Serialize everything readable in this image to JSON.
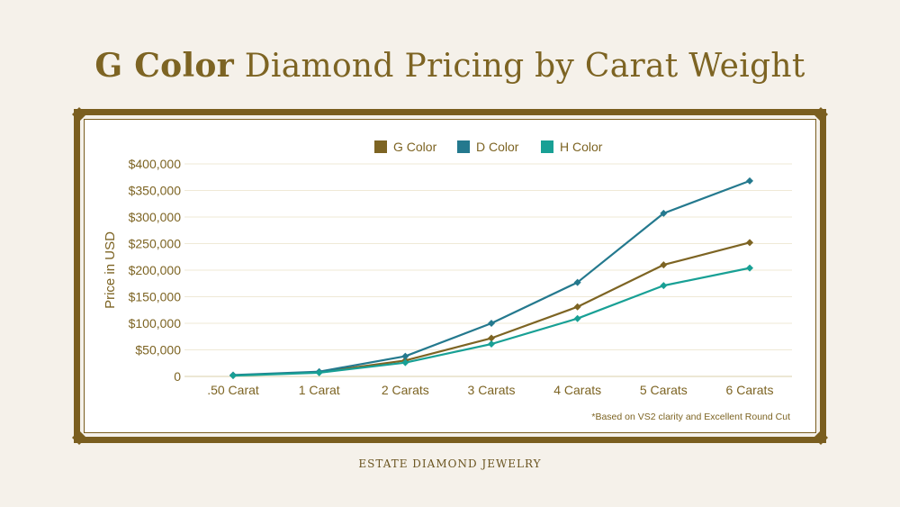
{
  "title": {
    "bold": "G Color",
    "rest": "Diamond Pricing by Carat Weight"
  },
  "footnote": "*Based on VS2 clarity and Excellent Round Cut",
  "brand": "ESTATE DIAMOND JEWELRY",
  "colors": {
    "gold": "#7a5e1f",
    "background": "#f5f1ea",
    "g_color": "#7d6423",
    "d_color": "#24798e",
    "h_color": "#18a095"
  },
  "chart_data": {
    "type": "line",
    "ylabel": "Price in USD",
    "xlabel": "",
    "categories": [
      ".50 Carat",
      "1 Carat",
      "2 Carats",
      "3 Carats",
      "4 Carats",
      "5 Carats",
      "6 Carats"
    ],
    "ylim": [
      0,
      400000
    ],
    "yticks": [
      0,
      50000,
      100000,
      150000,
      200000,
      250000,
      300000,
      350000,
      400000
    ],
    "ytick_labels": [
      "0",
      "$50,000",
      "$100,000",
      "$150,000",
      "$200,000",
      "$250,000",
      "$300,000",
      "$350,000",
      "$400,000"
    ],
    "grid": true,
    "legend_position": "top",
    "series": [
      {
        "name": "G Color",
        "color": "#7d6423",
        "values": [
          2000,
          8000,
          30000,
          72000,
          131000,
          210000,
          252000
        ]
      },
      {
        "name": "D Color",
        "color": "#24798e",
        "values": [
          2500,
          9000,
          38000,
          100000,
          177000,
          307000,
          368000
        ]
      },
      {
        "name": "H Color",
        "color": "#18a095",
        "values": [
          1500,
          7000,
          26000,
          61000,
          109000,
          171000,
          204000
        ]
      }
    ]
  }
}
